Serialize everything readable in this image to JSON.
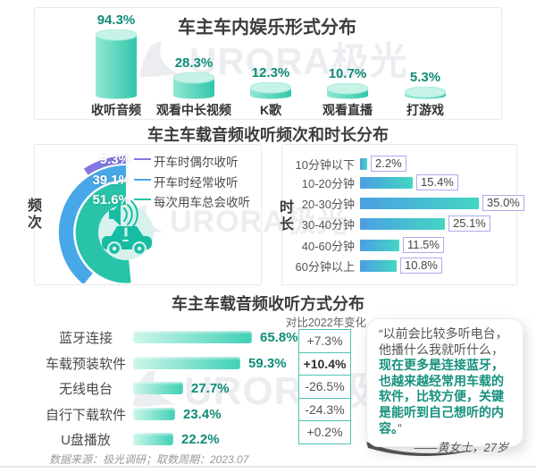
{
  "titles": {
    "entertainment": "车主车内娱乐形式分布",
    "freq_duration": "车主车载音频收听频次和时长分布",
    "methods": "车主车载音频收听方式分布"
  },
  "watermark_text": "URORA极光",
  "icons": {
    "donut_center": "car-speaker-icon",
    "watermark": "aurora-mountain-logo"
  },
  "colors": {
    "teal": "#29c3a9",
    "blue": "#47a7e8",
    "purple": "#8278e2",
    "teal_value_text": "#0f8b77",
    "duration_box_border": "#b3a9ea",
    "change_table_border": "#4fc2b1",
    "quote_highlight": "#17917e"
  },
  "frequency_panel": {
    "side_label": "频次"
  },
  "duration_panel": {
    "side_label": "时长"
  },
  "methods_panel": {
    "change_header": "对比2022年变化"
  },
  "quote": {
    "open_quote": "“",
    "gray_part": "以前会比较多听电台，他播什么我就听什么，",
    "teal_part": "现在更多是连接蓝牙，也越来越经常用车载的软件，比较方便，关键是能听到自己想听的内容。",
    "close_quote": "”",
    "attribution": "——黄女士，27岁"
  },
  "footer": {
    "source": "数据来源：极光调研；取数周期：2023.07"
  },
  "chart_data": [
    {
      "id": "entertainment",
      "type": "bar",
      "title": "车主车内娱乐形式分布",
      "categories": [
        "收听音频",
        "观看中长视频",
        "K歌",
        "观看直播",
        "打游戏"
      ],
      "values": [
        94.3,
        28.3,
        12.3,
        10.7,
        5.3
      ],
      "labels": [
        "94.3%",
        "28.3%",
        "12.3%",
        "10.7%",
        "5.3%"
      ],
      "unit": "%",
      "style": "3d-cylinder",
      "ylim": [
        0,
        100
      ]
    },
    {
      "id": "frequency",
      "type": "pie",
      "title": "频次",
      "categories": [
        "开车时偶尔收听",
        "开车时经常收听",
        "每次用车总会收听"
      ],
      "values": [
        9.3,
        39.1,
        51.6
      ],
      "labels": [
        "9.3%",
        "39.1%",
        "51.6%"
      ],
      "colors": [
        "#8278e2",
        "#47a7e8",
        "#29c3a9"
      ],
      "legend_position": "right"
    },
    {
      "id": "duration",
      "type": "bar",
      "orientation": "horizontal",
      "title": "时长",
      "categories": [
        "10分钟以下",
        "10-20分钟",
        "20-30分钟",
        "30-40分钟",
        "40-60分钟",
        "60分钟以上"
      ],
      "values": [
        2.2,
        15.4,
        35.0,
        25.1,
        11.5,
        10.8
      ],
      "labels": [
        "2.2%",
        "15.4%",
        "35.0%",
        "25.1%",
        "11.5%",
        "10.8%"
      ],
      "unit": "%"
    },
    {
      "id": "methods",
      "type": "bar",
      "orientation": "horizontal",
      "title": "车主车载音频收听方式分布",
      "categories": [
        "蓝牙连接",
        "车载预装软件",
        "无线电台",
        "自行下载软件",
        "U盘播放"
      ],
      "values": [
        65.8,
        59.3,
        27.7,
        23.4,
        22.2
      ],
      "labels": [
        "65.8%",
        "59.3%",
        "27.7%",
        "23.4%",
        "22.2%"
      ],
      "change_vs_2022": [
        "+7.3%",
        "+10.4%",
        "-26.5%",
        "-24.3%",
        "+0.2%"
      ],
      "change_bold_index": 1,
      "unit": "%"
    }
  ]
}
